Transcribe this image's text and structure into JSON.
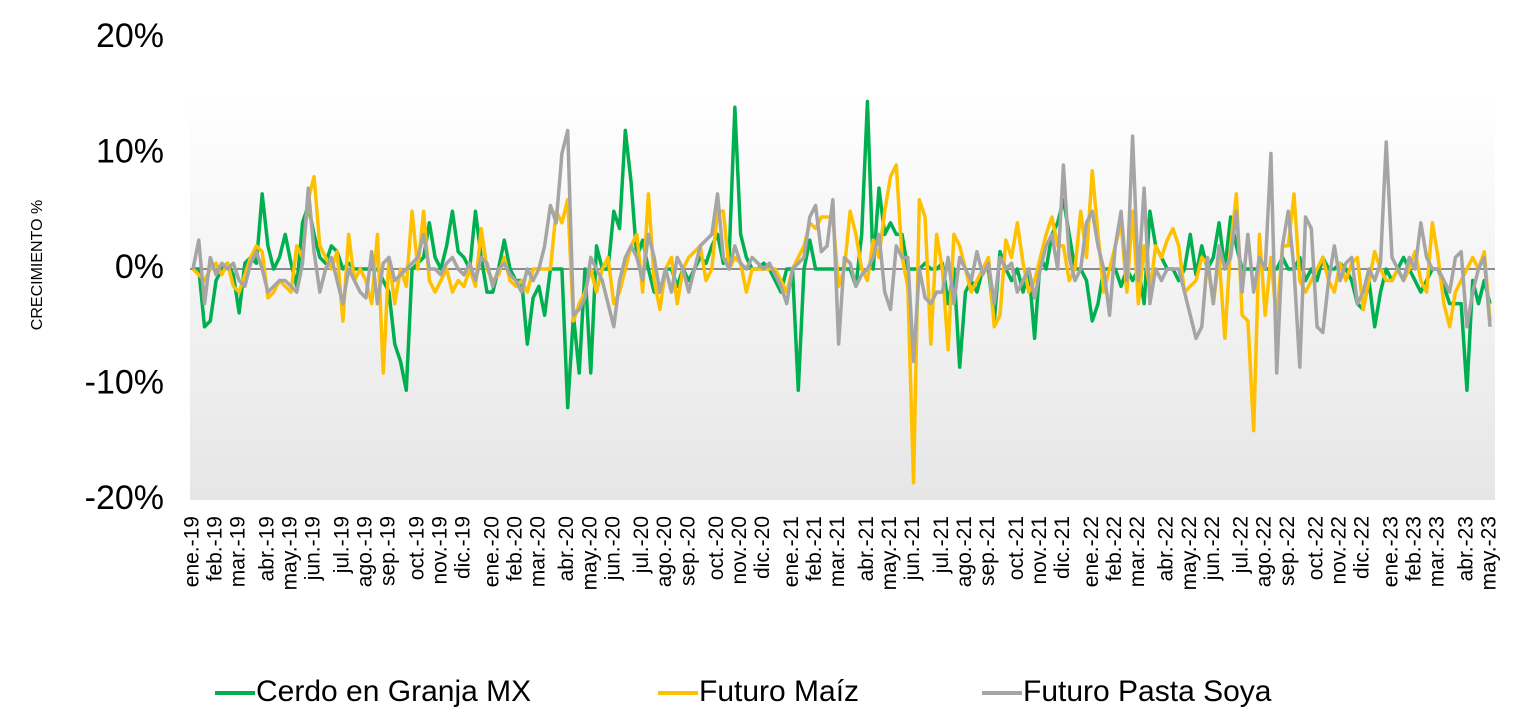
{
  "chart_data": {
    "type": "line",
    "y_label": "CRECIMIENTO %",
    "legend": "bottom",
    "grid": false,
    "ylim": [
      -20,
      20
    ],
    "yticks": [
      {
        "value": -20,
        "label": "-20%"
      },
      {
        "value": -10,
        "label": "-10%"
      },
      {
        "value": 0,
        "label": "0%"
      },
      {
        "value": 10,
        "label": "10%"
      },
      {
        "value": 20,
        "label": "20%"
      }
    ],
    "categories": [
      "ene.-19",
      null,
      null,
      null,
      "feb.-19",
      null,
      null,
      null,
      "mar.-19",
      null,
      null,
      null,
      null,
      "abr.-19",
      null,
      null,
      null,
      "may.-19",
      null,
      null,
      null,
      "jun.-19",
      null,
      null,
      null,
      null,
      "jul.-19",
      null,
      null,
      null,
      "ago.-19",
      null,
      null,
      null,
      "sep.-19",
      null,
      null,
      null,
      null,
      "oct.-19",
      null,
      null,
      null,
      "nov.-19",
      null,
      null,
      null,
      "dic.-19",
      null,
      null,
      null,
      null,
      "ene.-20",
      null,
      null,
      null,
      "feb.-20",
      null,
      null,
      null,
      "mar.-20",
      null,
      null,
      null,
      null,
      "abr.-20",
      null,
      null,
      null,
      "may.-20",
      null,
      null,
      null,
      "jun.-20",
      null,
      null,
      null,
      null,
      "jul.-20",
      null,
      null,
      null,
      "ago.-20",
      null,
      null,
      null,
      "sep.-20",
      null,
      null,
      null,
      null,
      "oct.-20",
      null,
      null,
      null,
      "nov.-20",
      null,
      null,
      null,
      "dic.-20",
      null,
      null,
      null,
      null,
      "ene.-21",
      null,
      null,
      null,
      "feb.-21",
      null,
      null,
      null,
      "mar.-21",
      null,
      null,
      null,
      null,
      "abr.-21",
      null,
      null,
      null,
      "may.-21",
      null,
      null,
      null,
      "jun.-21",
      null,
      null,
      null,
      null,
      "jul.-21",
      null,
      null,
      null,
      "ago.-21",
      null,
      null,
      null,
      "sep.-21",
      null,
      null,
      null,
      null,
      "oct.-21",
      null,
      null,
      null,
      "nov.-21",
      null,
      null,
      null,
      "dic.-21",
      null,
      null,
      null,
      null,
      "ene.-22",
      null,
      null,
      null,
      "feb.-22",
      null,
      null,
      null,
      "mar.-22",
      null,
      null,
      null,
      null,
      "abr.-22",
      null,
      null,
      null,
      "may.-22",
      null,
      null,
      null,
      "jun.-22",
      null,
      null,
      null,
      null,
      "jul.-22",
      null,
      null,
      null,
      "ago.-22",
      null,
      null,
      null,
      "sep.-22",
      null,
      null,
      null,
      null,
      "oct.-22",
      null,
      null,
      null,
      "nov.-22",
      null,
      null,
      null,
      "dic.-22",
      null,
      null,
      null,
      null,
      "ene.-23",
      null,
      null,
      null,
      "feb.-23",
      null,
      null,
      null,
      "mar.-23",
      null,
      null,
      null,
      null,
      "abr.-23",
      null,
      null,
      null,
      "may.-23"
    ],
    "series": [
      {
        "name": "Cerdo en Granja MX",
        "color": "#00b050",
        "values": [
          0,
          0,
          -5,
          -4.5,
          -1,
          0,
          0.5,
          -0.5,
          -3.8,
          0.5,
          1,
          0.5,
          6.5,
          2,
          0,
          1,
          3,
          0.5,
          -1.5,
          4,
          5.5,
          3,
          1,
          0.5,
          2,
          1.5,
          0,
          0.5,
          0,
          0,
          0,
          0,
          0,
          -1,
          -2,
          -6.5,
          -8,
          -10.5,
          0,
          0.5,
          1,
          4,
          1,
          0,
          2,
          5,
          1.5,
          1,
          0,
          5,
          1,
          -2,
          -2,
          0,
          2.5,
          0,
          -1,
          -1,
          -6.5,
          -2.5,
          -1.5,
          -4,
          0,
          0,
          0,
          -12,
          -4,
          -9,
          0,
          -9,
          2,
          0,
          0,
          5,
          3.5,
          12,
          7.5,
          1,
          2.5,
          0,
          -2,
          -2,
          0,
          0,
          -1.5,
          0,
          -1,
          0,
          1,
          0.5,
          2,
          3,
          0.5,
          1,
          14,
          3,
          1,
          0,
          0,
          0.5,
          0,
          -1,
          -2,
          0,
          0,
          -10.5,
          0,
          2.5,
          0,
          0,
          0,
          0,
          0,
          0,
          0,
          -1.5,
          3,
          14.5,
          0,
          7,
          3,
          4,
          3,
          3,
          0,
          0,
          0,
          0.5,
          0,
          0,
          0.5,
          -3,
          0,
          -8.5,
          -2,
          -1,
          -2,
          0,
          0,
          -4.5,
          1.5,
          0,
          -1,
          0,
          -2,
          0,
          -6,
          1,
          0,
          3,
          4,
          6,
          3,
          0,
          0,
          -1,
          -4.5,
          -3,
          0,
          0,
          0,
          -1.5,
          0,
          -1,
          0,
          -3,
          5,
          2,
          1,
          0,
          0,
          -1,
          0,
          3,
          -0.5,
          2,
          0,
          1,
          4,
          0,
          4.5,
          2,
          0,
          0,
          0,
          0,
          0,
          0,
          0,
          1,
          0,
          0,
          1,
          -1,
          0,
          -1,
          1,
          0,
          0,
          0.5,
          0,
          -1,
          -3,
          -3.5,
          -1,
          -5,
          -2,
          0,
          -1,
          0,
          1,
          0,
          -1,
          -2,
          -1,
          0,
          0,
          -1.5,
          -3,
          -3,
          -3,
          -10.5,
          -1,
          -3,
          -1,
          -3
        ]
      },
      {
        "name": "Futuro Maíz",
        "color": "#ffc000",
        "values": [
          0,
          -0.5,
          -1,
          0,
          0.5,
          -0.5,
          0.5,
          -1.5,
          -2,
          -0.5,
          1,
          2,
          1.5,
          -2.5,
          -2,
          -1,
          -1.5,
          -2,
          2,
          1,
          6,
          8,
          2,
          1,
          0,
          1.5,
          -4.5,
          3,
          -1,
          0,
          -1,
          -3,
          3,
          -9,
          1,
          -3,
          0,
          -1.5,
          5,
          0,
          5,
          -1,
          -2,
          -1,
          0,
          -2,
          -1,
          -1.5,
          0,
          -1.5,
          3.5,
          0,
          -1,
          -0.5,
          1,
          -1,
          -1.5,
          -1,
          -2,
          0,
          0,
          0,
          0,
          5,
          4,
          6,
          -4.5,
          -3,
          -2,
          0,
          -2,
          0,
          1,
          -3,
          -2,
          0,
          2,
          3,
          -2,
          6.5,
          -1,
          -3.5,
          0,
          1,
          -3,
          0,
          1,
          1.5,
          2,
          -1,
          0,
          5,
          5,
          0,
          1,
          0.5,
          -2,
          0,
          0,
          0,
          0,
          0,
          -1,
          -2,
          0,
          1,
          2,
          4,
          3.5,
          4.5,
          4.5,
          4.5,
          -1.5,
          0,
          5,
          3,
          0,
          -1,
          2.5,
          1,
          5,
          8,
          9,
          1,
          -1.5,
          -18.5,
          6,
          4.5,
          -6.5,
          3,
          0,
          -7,
          3,
          2,
          0,
          -2,
          -1,
          0,
          1,
          -5,
          -4,
          2.5,
          1,
          4,
          0.5,
          -2,
          -1,
          1,
          3,
          4.5,
          2,
          2,
          -1,
          0,
          5,
          1,
          8.5,
          3,
          -2,
          0,
          2,
          4,
          -2,
          5,
          -3,
          2,
          -2,
          2,
          1,
          2.5,
          3.5,
          2,
          -2,
          -1.5,
          -1,
          1,
          0.5,
          -3,
          1,
          -6,
          2,
          6.5,
          -4,
          -4.5,
          -14,
          3,
          -4,
          1,
          -4.5,
          2,
          2,
          6.5,
          -1,
          -2,
          -1,
          0,
          1,
          -1,
          -2,
          0.5,
          -1,
          0.5,
          1,
          -3.5,
          -1,
          1.5,
          0,
          -1,
          -1,
          0,
          -1,
          0,
          1.5,
          -1,
          -2,
          4,
          1,
          -3,
          -5,
          -2,
          -1,
          0,
          1,
          0,
          1.5,
          -4.5
        ]
      },
      {
        "name": "Futuro Pasta Soya",
        "color": "#a5a5a5",
        "values": [
          0,
          2.5,
          -3,
          1,
          -0.5,
          0.5,
          0,
          0.5,
          -1,
          -1.5,
          0.5,
          1.5,
          0,
          -2,
          -1.5,
          -1,
          -1,
          -1.5,
          -2,
          0.5,
          7,
          1.5,
          -2,
          0,
          1,
          -1,
          -3,
          0,
          -1,
          -2,
          -2.5,
          1.5,
          -3,
          0.5,
          1,
          -1,
          -0.5,
          0,
          0.5,
          1,
          3,
          0,
          0,
          -0.5,
          0.5,
          1,
          0,
          -0.5,
          0.5,
          -1,
          1,
          0.5,
          -1.5,
          0,
          0.5,
          -0.5,
          -1,
          -2,
          0,
          -1,
          0,
          2,
          5.5,
          4,
          10,
          12,
          -4,
          -3.5,
          -2.5,
          1,
          0,
          -1,
          -3,
          -5,
          -1,
          1,
          2,
          1,
          -1,
          3,
          1,
          -2,
          0,
          -2,
          1,
          0,
          -2,
          0,
          2,
          2.5,
          3,
          6.5,
          1,
          0,
          2,
          0.5,
          0,
          1,
          0.5,
          0,
          0.5,
          -0.5,
          -1.5,
          -3,
          0,
          0.5,
          1,
          4.5,
          5.5,
          1.5,
          2,
          6,
          -6.5,
          1,
          0.5,
          -1.5,
          -0.5,
          0,
          1,
          3,
          -2,
          -3.5,
          2,
          1,
          1,
          -8,
          0,
          -2.5,
          -3,
          -2,
          -2,
          1,
          -3,
          1,
          0,
          -1,
          1.5,
          -0.5,
          0.5,
          -3,
          1,
          0,
          0.5,
          -2,
          -1,
          0,
          -2.5,
          0,
          2,
          3,
          0,
          9,
          1,
          -1,
          0,
          4,
          5,
          2,
          0,
          -4,
          2,
          5,
          -1,
          11.5,
          -1,
          7,
          -3,
          0,
          -1,
          0,
          0,
          0,
          -2,
          -4,
          -6,
          -5,
          1,
          -3,
          2,
          0,
          1,
          5,
          -2,
          3,
          -2,
          1,
          0,
          10,
          -9,
          2,
          5,
          0,
          -8.5,
          4.5,
          3.5,
          -5,
          -5.5,
          -1,
          2,
          -1,
          0.5,
          1,
          -3,
          -2,
          0,
          -1,
          0.5,
          11,
          1,
          0,
          -1,
          1,
          0,
          4,
          1,
          0,
          0,
          -1,
          -2,
          1,
          1.5,
          -5,
          -2,
          0,
          1,
          -5
        ]
      }
    ]
  }
}
